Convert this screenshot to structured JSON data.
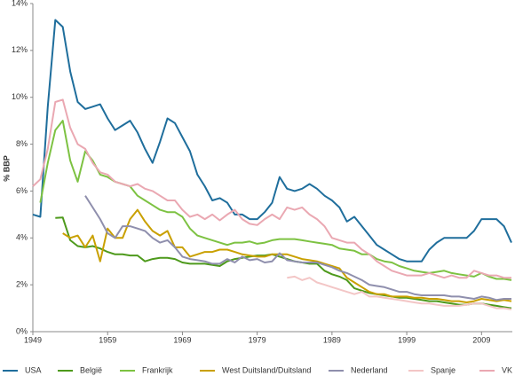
{
  "chart_data": {
    "type": "line",
    "y_label": "% BBP",
    "x": [
      1949,
      1950,
      1951,
      1952,
      1953,
      1954,
      1955,
      1956,
      1957,
      1958,
      1959,
      1960,
      1961,
      1962,
      1963,
      1964,
      1965,
      1966,
      1967,
      1968,
      1969,
      1970,
      1971,
      1972,
      1973,
      1974,
      1975,
      1976,
      1977,
      1978,
      1979,
      1980,
      1981,
      1982,
      1983,
      1984,
      1985,
      1986,
      1987,
      1988,
      1989,
      1990,
      1991,
      1992,
      1993,
      1994,
      1995,
      1996,
      1997,
      1998,
      1999,
      2000,
      2001,
      2002,
      2003,
      2004,
      2005,
      2006,
      2007,
      2008,
      2009,
      2010,
      2011,
      2012,
      2013
    ],
    "xlim": [
      1949,
      2013
    ],
    "xticks": [
      1949,
      1959,
      1969,
      1979,
      1989,
      1999,
      2009
    ],
    "ylim": [
      0,
      14
    ],
    "yticks": [
      {
        "value": 0,
        "label": "0%"
      },
      {
        "value": 2,
        "label": "2%"
      },
      {
        "value": 4,
        "label": "4%"
      },
      {
        "value": 6,
        "label": "6%"
      },
      {
        "value": 8,
        "label": "8%"
      },
      {
        "value": 10,
        "label": "10%"
      },
      {
        "value": 12,
        "label": "12%"
      },
      {
        "value": 14,
        "label": "14%"
      }
    ],
    "grid": false,
    "legend": "bottom",
    "series": [
      {
        "name": "USA",
        "color": "#1f6e9c",
        "values": [
          5.0,
          4.9,
          9.6,
          13.3,
          13.0,
          11.1,
          9.8,
          9.5,
          9.6,
          9.7,
          9.1,
          8.6,
          8.8,
          9.0,
          8.5,
          7.8,
          7.2,
          8.1,
          9.1,
          8.9,
          8.3,
          7.7,
          6.7,
          6.2,
          5.6,
          5.7,
          5.5,
          5.0,
          5.0,
          4.8,
          4.8,
          5.1,
          5.5,
          6.6,
          6.1,
          6.0,
          6.1,
          6.3,
          6.1,
          5.8,
          5.6,
          5.3,
          4.7,
          4.9,
          4.5,
          4.1,
          3.7,
          3.5,
          3.3,
          3.1,
          3.0,
          3.0,
          3.0,
          3.5,
          3.8,
          4.0,
          4.0,
          4.0,
          4.0,
          4.3,
          4.8,
          4.8,
          4.8,
          4.5,
          3.8
        ]
      },
      {
        "name": "België",
        "color": "#4e9a1c",
        "values": [
          null,
          null,
          null,
          4.85,
          4.87,
          3.9,
          3.65,
          3.6,
          3.65,
          3.55,
          3.4,
          3.3,
          3.3,
          3.25,
          3.25,
          3.0,
          3.1,
          3.15,
          3.15,
          3.1,
          2.95,
          2.9,
          2.9,
          2.9,
          2.85,
          2.8,
          3.0,
          3.1,
          3.15,
          3.2,
          3.25,
          3.25,
          3.3,
          3.2,
          3.1,
          3.0,
          2.95,
          2.9,
          2.9,
          2.6,
          2.45,
          2.35,
          2.2,
          1.85,
          1.75,
          1.65,
          1.6,
          1.55,
          1.5,
          1.45,
          1.45,
          1.4,
          1.35,
          1.3,
          1.3,
          1.25,
          1.2,
          1.15,
          1.15,
          1.2,
          1.2,
          1.15,
          1.1,
          1.05,
          1.0
        ]
      },
      {
        "name": "Frankrijk",
        "color": "#7dc242",
        "values": [
          null,
          5.5,
          7.2,
          8.6,
          9.0,
          7.3,
          6.4,
          7.7,
          7.3,
          6.7,
          6.6,
          6.4,
          6.3,
          6.2,
          5.8,
          5.6,
          5.4,
          5.2,
          5.1,
          5.1,
          4.9,
          4.4,
          4.1,
          4.0,
          3.9,
          3.8,
          3.7,
          3.8,
          3.8,
          3.85,
          3.75,
          3.8,
          3.9,
          3.95,
          3.95,
          3.95,
          3.9,
          3.85,
          3.8,
          3.75,
          3.7,
          3.55,
          3.5,
          3.45,
          3.3,
          3.3,
          3.1,
          3.0,
          2.95,
          2.8,
          2.7,
          2.6,
          2.55,
          2.5,
          2.55,
          2.6,
          2.5,
          2.45,
          2.4,
          2.35,
          2.5,
          2.35,
          2.25,
          2.25,
          2.2
        ]
      },
      {
        "name": "West Duitsland/Duitsland",
        "color": "#c9a000",
        "values": [
          null,
          null,
          null,
          null,
          4.2,
          4.0,
          4.1,
          3.6,
          4.1,
          3.0,
          4.4,
          4.0,
          4.0,
          4.8,
          5.2,
          4.7,
          4.3,
          4.1,
          4.3,
          3.6,
          3.6,
          3.2,
          3.3,
          3.4,
          3.4,
          3.5,
          3.5,
          3.4,
          3.3,
          3.25,
          3.2,
          3.2,
          3.3,
          3.3,
          3.3,
          3.2,
          3.1,
          3.05,
          3.0,
          2.9,
          2.8,
          2.7,
          2.3,
          2.1,
          1.9,
          1.7,
          1.6,
          1.6,
          1.5,
          1.5,
          1.5,
          1.45,
          1.45,
          1.4,
          1.4,
          1.35,
          1.3,
          1.3,
          1.25,
          1.3,
          1.4,
          1.35,
          1.3,
          1.35,
          1.3
        ]
      },
      {
        "name": "Nederland",
        "color": "#8f8fad",
        "values": [
          null,
          null,
          null,
          null,
          null,
          null,
          null,
          5.8,
          5.3,
          4.8,
          4.2,
          4.0,
          4.5,
          4.5,
          4.4,
          4.3,
          4.0,
          3.8,
          3.9,
          3.6,
          3.2,
          3.1,
          3.05,
          3.0,
          2.9,
          2.9,
          3.1,
          2.95,
          3.2,
          3.05,
          3.1,
          2.95,
          3.0,
          3.35,
          3.05,
          3.0,
          2.95,
          2.95,
          2.95,
          2.85,
          2.75,
          2.6,
          2.5,
          2.35,
          2.2,
          2.0,
          1.95,
          1.9,
          1.8,
          1.7,
          1.7,
          1.6,
          1.55,
          1.55,
          1.55,
          1.55,
          1.5,
          1.5,
          1.45,
          1.4,
          1.5,
          1.45,
          1.35,
          1.4,
          1.4
        ]
      },
      {
        "name": "Spanje",
        "color": "#f3c6c6",
        "values": [
          null,
          null,
          null,
          null,
          null,
          null,
          null,
          null,
          null,
          null,
          null,
          null,
          null,
          null,
          null,
          null,
          null,
          null,
          null,
          null,
          null,
          null,
          null,
          null,
          null,
          null,
          null,
          null,
          null,
          null,
          null,
          null,
          null,
          null,
          2.3,
          2.35,
          2.2,
          2.3,
          2.1,
          2.0,
          1.9,
          1.8,
          1.7,
          1.6,
          1.7,
          1.5,
          1.5,
          1.45,
          1.4,
          1.35,
          1.3,
          1.25,
          1.2,
          1.2,
          1.15,
          1.1,
          1.1,
          1.1,
          1.15,
          1.2,
          1.2,
          1.1,
          1.0,
          1.0,
          0.95
        ]
      },
      {
        "name": "VK",
        "color": "#eaa8b2",
        "values": [
          6.2,
          6.5,
          7.8,
          9.8,
          9.9,
          8.7,
          8.0,
          7.8,
          7.2,
          6.8,
          6.7,
          6.4,
          6.3,
          6.2,
          6.3,
          6.1,
          6.0,
          5.8,
          5.6,
          5.6,
          5.2,
          4.9,
          5.0,
          4.8,
          5.0,
          4.75,
          5.0,
          5.2,
          4.8,
          4.6,
          4.55,
          4.8,
          5.0,
          4.8,
          5.3,
          5.2,
          5.3,
          5.0,
          4.8,
          4.5,
          4.0,
          3.9,
          3.8,
          3.8,
          3.5,
          3.3,
          3.0,
          2.8,
          2.6,
          2.5,
          2.4,
          2.4,
          2.4,
          2.5,
          2.4,
          2.3,
          2.4,
          2.3,
          2.3,
          2.6,
          2.5,
          2.4,
          2.4,
          2.3,
          2.3
        ]
      }
    ]
  }
}
